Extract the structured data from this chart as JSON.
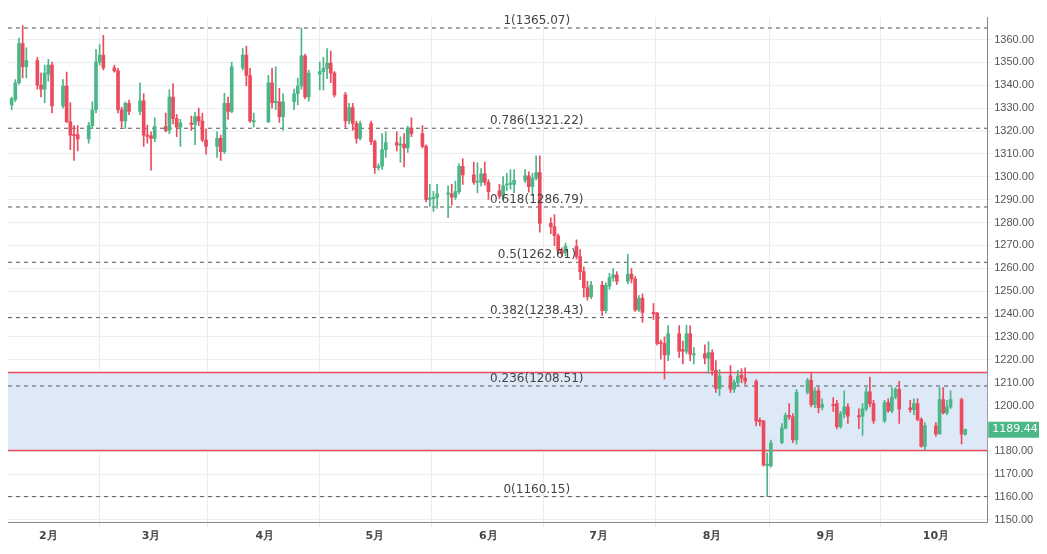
{
  "chart_data": {
    "type": "candlestick",
    "x": [
      "--01-22",
      "--01-23",
      "--01-24",
      "--01-25",
      "--01-26",
      "--01-29",
      "--01-30",
      "--01-31",
      "--02-01",
      "--02-02",
      "--02-05",
      "--02-06",
      "--02-07",
      "--02-08",
      "--02-09",
      "--02-12",
      "--02-13",
      "--02-14",
      "--02-15",
      "--02-16",
      "--02-19",
      "--02-20",
      "--02-21",
      "--02-22",
      "--02-23",
      "--02-26",
      "--02-27",
      "--02-28",
      "--03-01",
      "--03-02",
      "--03-05",
      "--03-06",
      "--03-07",
      "--03-08",
      "--03-09",
      "--03-12",
      "--03-13",
      "--03-14",
      "--03-15",
      "--03-16",
      "--03-19",
      "--03-20",
      "--03-21",
      "--03-22",
      "--03-23",
      "--03-26",
      "--03-27",
      "--03-28",
      "--03-29",
      "--04-02",
      "--04-03",
      "--04-04",
      "--04-05",
      "--04-06",
      "--04-09",
      "--04-10",
      "--04-11",
      "--04-12",
      "--04-13",
      "--04-16",
      "--04-17",
      "--04-18",
      "--04-19",
      "--04-20",
      "--04-23",
      "--04-24",
      "--04-25",
      "--04-26",
      "--04-27",
      "--04-30",
      "--05-01",
      "--05-02",
      "--05-03",
      "--05-04",
      "--05-07",
      "--05-08",
      "--05-09",
      "--05-10",
      "--05-11",
      "--05-14",
      "--05-15",
      "--05-16",
      "--05-17",
      "--05-18",
      "--05-21",
      "--05-22",
      "--05-23",
      "--05-24",
      "--05-25",
      "--05-28",
      "--05-29",
      "--05-30",
      "--05-31",
      "--06-01",
      "--06-04",
      "--06-05",
      "--06-06",
      "--06-07",
      "--06-08",
      "--06-11",
      "--06-12",
      "--06-13",
      "--06-14",
      "--06-15",
      "--06-18",
      "--06-19",
      "--06-20",
      "--06-21",
      "--06-22",
      "--06-25",
      "--06-26",
      "--06-27",
      "--06-28",
      "--06-29",
      "--07-02",
      "--07-03",
      "--07-04",
      "--07-05",
      "--07-06",
      "--07-09",
      "--07-10",
      "--07-11",
      "--07-12",
      "--07-13",
      "--07-16",
      "--07-17",
      "--07-18",
      "--07-19",
      "--07-20",
      "--07-23",
      "--07-24",
      "--07-25",
      "--07-26",
      "--07-27",
      "--07-30",
      "--07-31",
      "--08-01",
      "--08-02",
      "--08-03",
      "--08-06",
      "--08-07",
      "--08-08",
      "--08-09",
      "--08-10",
      "--08-13",
      "--08-14",
      "--08-15",
      "--08-16",
      "--08-17",
      "--08-20",
      "--08-21",
      "--08-22",
      "--08-23",
      "--08-24",
      "--08-27",
      "--08-28",
      "--08-29",
      "--08-30",
      "--08-31",
      "--09-03",
      "--09-04",
      "--09-05",
      "--09-06",
      "--09-07",
      "--09-10",
      "--09-11",
      "--09-12",
      "--09-13",
      "--09-14",
      "--09-17",
      "--09-18",
      "--09-19",
      "--09-20",
      "--09-21",
      "--09-24",
      "--09-25",
      "--09-26",
      "--09-27",
      "--09-28",
      "--10-01",
      "--10-02",
      "--10-03",
      "--10-04",
      "--10-05",
      "--10-08",
      "--10-09"
    ],
    "ohlc": [
      [
        1331.4,
        1334.9,
        1329.3,
        1334.2
      ],
      [
        1333.8,
        1342.5,
        1332.8,
        1341.1
      ],
      [
        1341.1,
        1360.6,
        1340.4,
        1358.2
      ],
      [
        1358.2,
        1366.1,
        1343.2,
        1348.1
      ],
      [
        1348.1,
        1356.4,
        1343.2,
        1350.8
      ],
      [
        1350.8,
        1352.2,
        1338.3,
        1340.1
      ],
      [
        1340.1,
        1345.3,
        1334.9,
        1338.3
      ],
      [
        1338.3,
        1348.8,
        1332.4,
        1345.3
      ],
      [
        1344.9,
        1351.3,
        1341.8,
        1348.8
      ],
      [
        1348.8,
        1350.1,
        1327.9,
        1331.0
      ],
      [
        1331.0,
        1342.5,
        1330.0,
        1339.7
      ],
      [
        1339.7,
        1345.8,
        1323.8,
        1324.0
      ],
      [
        1324.0,
        1332.4,
        1311.9,
        1318.2
      ],
      [
        1318.5,
        1322.4,
        1307.1,
        1318.0
      ],
      [
        1318.5,
        1322.4,
        1311.3,
        1316.5
      ],
      [
        1316.5,
        1323.8,
        1314.7,
        1322.4
      ],
      [
        1322.4,
        1332.8,
        1321.0,
        1329.3
      ],
      [
        1329.3,
        1355.7,
        1327.9,
        1350.1
      ],
      [
        1350.1,
        1357.8,
        1348.8,
        1353.2
      ],
      [
        1353.2,
        1361.9,
        1346.7,
        1347.6
      ],
      [
        1347.6,
        1348.8,
        1345.7,
        1346.3
      ],
      [
        1346.3,
        1347.4,
        1327.9,
        1329.3
      ],
      [
        1329.3,
        1330.4,
        1321.7,
        1324.4
      ],
      [
        1324.4,
        1332.8,
        1321.0,
        1332.1
      ],
      [
        1332.1,
        1333.5,
        1327.2,
        1328.6
      ],
      [
        1328.6,
        1341.1,
        1327.2,
        1333.2
      ],
      [
        1333.2,
        1336.3,
        1313.3,
        1318.2
      ],
      [
        1318.2,
        1322.6,
        1314.7,
        1317.6
      ],
      [
        1317.9,
        1319.6,
        1302.9,
        1316.8
      ],
      [
        1316.8,
        1325.8,
        1315.4,
        1321.9
      ],
      [
        1321.9,
        1327.9,
        1319.6,
        1320.3
      ],
      [
        1320.3,
        1338.0,
        1318.9,
        1334.9
      ],
      [
        1334.9,
        1340.8,
        1323.1,
        1325.4
      ],
      [
        1325.4,
        1327.2,
        1317.5,
        1321.7
      ],
      [
        1321.7,
        1325.1,
        1313.3,
        1323.5
      ],
      [
        1323.5,
        1326.5,
        1320.3,
        1322.9
      ],
      [
        1322.9,
        1328.2,
        1314.0,
        1326.3
      ],
      [
        1326.3,
        1330.0,
        1322.4,
        1324.4
      ],
      [
        1324.4,
        1327.9,
        1315.4,
        1316.1
      ],
      [
        1316.1,
        1321.0,
        1309.9,
        1313.3
      ],
      [
        1313.3,
        1319.6,
        1308.5,
        1316.8
      ],
      [
        1316.8,
        1318.2,
        1307.1,
        1311.0
      ],
      [
        1311.0,
        1336.5,
        1310.1,
        1332.1
      ],
      [
        1332.1,
        1334.9,
        1325.1,
        1328.6
      ],
      [
        1328.6,
        1350.1,
        1327.9,
        1348.1
      ],
      [
        1347.6,
        1356.0,
        1346.7,
        1353.2
      ],
      [
        1353.2,
        1357.1,
        1339.7,
        1344.3
      ],
      [
        1344.3,
        1347.4,
        1323.8,
        1324.4
      ],
      [
        1324.0,
        1327.9,
        1321.7,
        1324.6
      ],
      [
        1324.0,
        1344.4,
        1323.8,
        1341.1
      ],
      [
        1341.1,
        1347.4,
        1330.0,
        1332.4
      ],
      [
        1332.4,
        1348.1,
        1329.3,
        1333.1
      ],
      [
        1332.8,
        1338.7,
        1323.8,
        1326.3
      ],
      [
        1326.3,
        1336.3,
        1320.3,
        1332.8
      ],
      [
        1332.8,
        1338.4,
        1329.3,
        1336.3
      ],
      [
        1336.3,
        1343.2,
        1331.4,
        1339.7
      ],
      [
        1339.7,
        1365.07,
        1338.3,
        1352.9
      ],
      [
        1352.9,
        1353.6,
        1334.2,
        1334.9
      ],
      [
        1334.9,
        1346.7,
        1333.1,
        1345.3
      ],
      [
        1344.9,
        1350.1,
        1338.0,
        1346.0
      ],
      [
        1346.0,
        1352.2,
        1337.9,
        1347.4
      ],
      [
        1347.4,
        1356.0,
        1342.9,
        1349.7
      ],
      [
        1349.7,
        1355.0,
        1341.1,
        1345.3
      ],
      [
        1345.3,
        1346.0,
        1334.9,
        1335.8
      ],
      [
        1335.8,
        1336.9,
        1321.7,
        1324.4
      ],
      [
        1324.4,
        1332.1,
        1323.1,
        1330.3
      ],
      [
        1330.3,
        1332.1,
        1320.3,
        1323.3
      ],
      [
        1323.3,
        1324.4,
        1314.7,
        1316.8
      ],
      [
        1316.8,
        1324.4,
        1316.1,
        1323.3
      ],
      [
        1323.3,
        1324.4,
        1314.0,
        1315.4
      ],
      [
        1315.4,
        1316.1,
        1301.5,
        1304.0
      ],
      [
        1304.0,
        1305.7,
        1302.9,
        1304.6
      ],
      [
        1304.6,
        1318.9,
        1303.2,
        1311.9
      ],
      [
        1311.9,
        1319.6,
        1308.5,
        1315.0
      ],
      [
        1315.0,
        1319.6,
        1311.3,
        1313.8
      ],
      [
        1313.8,
        1317.5,
        1306.4,
        1314.3
      ],
      [
        1314.3,
        1318.9,
        1304.3,
        1312.6
      ],
      [
        1312.6,
        1322.2,
        1310.6,
        1321.3
      ],
      [
        1321.3,
        1325.8,
        1317.5,
        1318.9
      ],
      [
        1318.9,
        1322.4,
        1312.6,
        1313.3
      ],
      [
        1313.3,
        1314.0,
        1289.0,
        1290.1
      ],
      [
        1290.1,
        1296.7,
        1287.0,
        1290.7
      ],
      [
        1290.4,
        1293.6,
        1284.9,
        1291.0
      ],
      [
        1291.0,
        1296.7,
        1286.3,
        1292.5
      ],
      [
        1292.4,
        1296.0,
        1282.1,
        1293.0
      ],
      [
        1292.5,
        1296.7,
        1287.6,
        1291.1
      ],
      [
        1291.1,
        1298.1,
        1290.1,
        1293.5
      ],
      [
        1293.5,
        1305.7,
        1292.5,
        1304.6
      ],
      [
        1304.6,
        1307.8,
        1296.7,
        1300.8
      ],
      [
        1300.8,
        1306.4,
        1296.7,
        1297.6
      ],
      [
        1297.6,
        1306.1,
        1293.0,
        1298.1
      ],
      [
        1297.6,
        1303.6,
        1296.0,
        1301.3
      ],
      [
        1301.3,
        1306.4,
        1296.3,
        1297.6
      ],
      [
        1297.6,
        1298.8,
        1290.1,
        1293.5
      ],
      [
        1293.9,
        1296.7,
        1290.4,
        1291.5
      ],
      [
        1291.5,
        1300.1,
        1290.1,
        1296.0
      ],
      [
        1296.3,
        1301.5,
        1293.9,
        1296.8
      ],
      [
        1296.7,
        1303.2,
        1294.6,
        1297.4
      ],
      [
        1296.7,
        1303.2,
        1293.0,
        1298.5
      ],
      [
        1298.5,
        1303.2,
        1297.4,
        1300.4
      ],
      [
        1300.4,
        1302.2,
        1293.3,
        1295.7
      ],
      [
        1295.7,
        1301.5,
        1291.7,
        1299.4
      ],
      [
        1299.4,
        1309.2,
        1298.6,
        1301.8
      ],
      [
        1301.8,
        1309.2,
        1275.8,
        1279.6
      ],
      [
        1279.6,
        1282.1,
        1275.1,
        1278.2
      ],
      [
        1278.2,
        1283.5,
        1269.9,
        1274.2
      ],
      [
        1274.2,
        1275.1,
        1266.5,
        1267.8
      ],
      [
        1267.8,
        1268.9,
        1265.4,
        1266.5
      ],
      [
        1266.8,
        1271.0,
        1265.4,
        1269.6
      ],
      [
        1269.6,
        1272.4,
        1264.0,
        1265.1
      ],
      [
        1265.1,
        1268.2,
        1255.0,
        1258.5
      ],
      [
        1258.5,
        1260.6,
        1247.4,
        1251.5
      ],
      [
        1251.5,
        1254.3,
        1246.0,
        1247.6
      ],
      [
        1247.6,
        1254.3,
        1246.7,
        1252.6
      ],
      [
        1252.6,
        1254.3,
        1239.3,
        1241.5
      ],
      [
        1241.5,
        1253.6,
        1240.4,
        1252.6
      ],
      [
        1252.2,
        1257.8,
        1250.8,
        1256.0
      ],
      [
        1256.0,
        1259.9,
        1254.3,
        1257.1
      ],
      [
        1257.1,
        1258.5,
        1252.9,
        1254.3
      ],
      [
        1254.3,
        1266.1,
        1253.2,
        1257.4
      ],
      [
        1257.4,
        1259.9,
        1253.6,
        1255.3
      ],
      [
        1255.3,
        1256.4,
        1241.1,
        1241.8
      ],
      [
        1241.8,
        1248.1,
        1241.1,
        1246.9
      ],
      [
        1246.9,
        1248.8,
        1236.3,
        1240.7
      ],
      [
        1240.7,
        1244.6,
        1237.6,
        1240.1
      ],
      [
        1240.4,
        1240.7,
        1226.5,
        1227.1
      ],
      [
        1227.6,
        1228.6,
        1220.3,
        1227.1
      ],
      [
        1227.1,
        1230.0,
        1211.5,
        1222.1
      ],
      [
        1222.1,
        1234.9,
        1219.6,
        1231.4
      ],
      [
        1231.4,
        1234.9,
        1221.0,
        1223.7
      ],
      [
        1224.4,
        1228.2,
        1218.2,
        1223.7
      ],
      [
        1223.7,
        1235.1,
        1222.6,
        1231.4
      ],
      [
        1231.4,
        1234.9,
        1219.6,
        1222.4
      ],
      [
        1222.1,
        1225.4,
        1218.2,
        1222.6
      ],
      [
        1222.6,
        1226.5,
        1218.2,
        1220.7
      ],
      [
        1220.7,
        1227.9,
        1214.0,
        1223.1
      ],
      [
        1223.1,
        1224.4,
        1213.3,
        1215.4
      ],
      [
        1215.4,
        1219.6,
        1205.7,
        1207.4
      ],
      [
        1207.4,
        1215.7,
        1204.3,
        1212.9
      ],
      [
        1212.9,
        1217.5,
        1205.7,
        1207.1
      ],
      [
        1207.1,
        1211.2,
        1205.7,
        1210.1
      ],
      [
        1210.1,
        1215.4,
        1208.7,
        1212.9
      ],
      [
        1213.3,
        1216.1,
        1209.9,
        1211.9
      ],
      [
        1211.9,
        1216.5,
        1209.2,
        1210.6
      ],
      [
        1210.6,
        1211.3,
        1191.1,
        1193.2
      ],
      [
        1193.5,
        1194.6,
        1191.1,
        1192.9
      ],
      [
        1193.2,
        1193.5,
        1173.5,
        1174.0
      ],
      [
        1173.7,
        1179.3,
        1160.15,
        1174.4
      ],
      [
        1173.7,
        1184.9,
        1173.0,
        1183.7
      ],
      [
        1183.7,
        1192.1,
        1183.2,
        1190.1
      ],
      [
        1190.1,
        1196.7,
        1189.7,
        1195.7
      ],
      [
        1195.7,
        1200.8,
        1193.9,
        1195.0
      ],
      [
        1195.0,
        1196.3,
        1183.7,
        1184.9
      ],
      [
        1184.9,
        1207.1,
        1183.2,
        1205.7
      ],
      [
        1205.7,
        1211.9,
        1205.0,
        1211.0
      ],
      [
        1211.0,
        1214.0,
        1199.4,
        1200.4
      ],
      [
        1200.4,
        1207.8,
        1199.0,
        1206.4
      ],
      [
        1206.4,
        1207.8,
        1196.7,
        1199.0
      ],
      [
        1199.3,
        1202.9,
        1198.1,
        1200.4
      ],
      [
        1200.4,
        1203.5,
        1197.4,
        1199.9
      ],
      [
        1200.8,
        1202.2,
        1189.7,
        1190.7
      ],
      [
        1190.7,
        1197.4,
        1190.1,
        1196.3
      ],
      [
        1196.3,
        1206.4,
        1194.6,
        1199.4
      ],
      [
        1199.4,
        1200.8,
        1192.1,
        1195.3
      ],
      [
        1195.6,
        1198.5,
        1189.9,
        1195.0
      ],
      [
        1195.3,
        1200.8,
        1186.9,
        1198.5
      ],
      [
        1198.5,
        1207.8,
        1197.6,
        1206.0
      ],
      [
        1206.0,
        1212.4,
        1199.4,
        1200.8
      ],
      [
        1200.8,
        1202.2,
        1192.1,
        1193.2
      ],
      [
        1193.2,
        1202.2,
        1192.5,
        1201.3
      ],
      [
        1201.3,
        1202.9,
        1197.1,
        1197.6
      ],
      [
        1197.6,
        1207.8,
        1196.7,
        1203.6
      ],
      [
        1203.6,
        1207.8,
        1202.9,
        1207.1
      ],
      [
        1207.1,
        1210.6,
        1192.1,
        1198.5
      ],
      [
        1199.0,
        1202.2,
        1197.1,
        1198.2
      ],
      [
        1198.2,
        1202.9,
        1196.0,
        1200.8
      ],
      [
        1200.8,
        1202.9,
        1193.2,
        1193.9
      ],
      [
        1193.9,
        1194.6,
        1181.8,
        1182.1
      ],
      [
        1182.1,
        1192.5,
        1180.4,
        1191.1
      ],
      [
        1191.1,
        1192.5,
        1186.5,
        1187.6
      ],
      [
        1187.6,
        1207.8,
        1187.4,
        1202.6
      ],
      [
        1202.6,
        1207.8,
        1196.3,
        1196.7
      ],
      [
        1196.7,
        1202.2,
        1196.0,
        1199.4
      ],
      [
        1199.4,
        1206.4,
        1198.7,
        1202.6
      ],
      [
        1202.6,
        1203.2,
        1183.2,
        1187.4
      ],
      [
        1187.4,
        1189.7,
        1187.0,
        1189.44
      ]
    ],
    "xlim": [
      "--01-21",
      "--10-15"
    ],
    "xticks": [
      {
        "value": "--02-01",
        "label": "2月"
      },
      {
        "value": "--03-01",
        "label": "3月"
      },
      {
        "value": "--04-01",
        "label": "4月"
      },
      {
        "value": "--05-01",
        "label": "5月"
      },
      {
        "value": "--06-01",
        "label": "6月"
      },
      {
        "value": "--07-01",
        "label": "7月"
      },
      {
        "value": "--08-01",
        "label": "8月"
      },
      {
        "value": "--09-01",
        "label": "9月"
      },
      {
        "value": "--10-01",
        "label": "10月"
      }
    ],
    "ylim": [
      1148.7,
      1369.6
    ],
    "yticks": [
      {
        "value": 1150,
        "label": "1150.00"
      },
      {
        "value": 1160,
        "label": "1160.00"
      },
      {
        "value": 1170,
        "label": "1170.00"
      },
      {
        "value": 1180,
        "label": "1180.00"
      },
      {
        "value": 1190,
        "label": null
      },
      {
        "value": 1200,
        "label": "1200.00"
      },
      {
        "value": 1210,
        "label": "1210.00"
      },
      {
        "value": 1220,
        "label": "1220.00"
      },
      {
        "value": 1230,
        "label": "1230.00"
      },
      {
        "value": 1240,
        "label": "1240.00"
      },
      {
        "value": 1250,
        "label": "1250.00"
      },
      {
        "value": 1260,
        "label": "1260.00"
      },
      {
        "value": 1270,
        "label": "1270.00"
      },
      {
        "value": 1280,
        "label": "1280.00"
      },
      {
        "value": 1290,
        "label": "1290.00"
      },
      {
        "value": 1300,
        "label": "1300.00"
      },
      {
        "value": 1310,
        "label": "1310.00"
      },
      {
        "value": 1320,
        "label": "1320.00"
      },
      {
        "value": 1330,
        "label": "1330.00"
      },
      {
        "value": 1340,
        "label": "1340.00"
      },
      {
        "value": 1350,
        "label": "1350.00"
      },
      {
        "value": 1360,
        "label": "1360.00"
      }
    ],
    "ref_lines": [
      {
        "axis": "y",
        "value": 1365.07,
        "label": "1(1365.07)",
        "color": "#555555",
        "line_style": "dashed"
      },
      {
        "axis": "y",
        "value": 1321.22,
        "label": "0.786(1321.22)",
        "color": "#555555",
        "line_style": "dashed"
      },
      {
        "axis": "y",
        "value": 1286.79,
        "label": "0.618(1286.79)",
        "color": "#555555",
        "line_style": "dashed"
      },
      {
        "axis": "y",
        "value": 1262.61,
        "label": "0.5(1262.61)",
        "color": "#555555",
        "line_style": "dashed"
      },
      {
        "axis": "y",
        "value": 1238.43,
        "label": "0.382(1238.43)",
        "color": "#555555",
        "line_style": "dashed"
      },
      {
        "axis": "y",
        "value": 1208.51,
        "label": "0.236(1208.51)",
        "color": "#555555",
        "line_style": "dashed"
      },
      {
        "axis": "y",
        "value": 1160.15,
        "label": "0(1160.15)",
        "color": "#555555",
        "line_style": "dashed"
      },
      {
        "axis": "y",
        "value": 1214.4,
        "color": "#ec4b5e",
        "line_style": "solid"
      },
      {
        "axis": "y",
        "value": 1180.3,
        "color": "#ec4b5e",
        "line_style": "solid"
      }
    ],
    "bands": [
      {
        "axis": "y",
        "from": 1180.3,
        "to": 1214.4,
        "color": "#dde9f7"
      }
    ],
    "annotations": [
      "1189.44"
    ],
    "grid": true
  }
}
